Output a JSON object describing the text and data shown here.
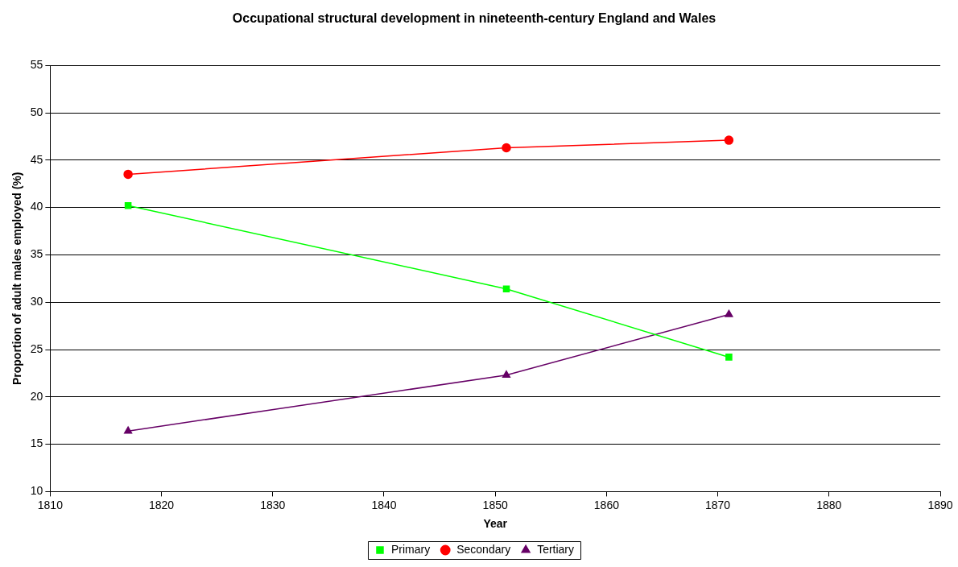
{
  "chart_data": {
    "type": "line",
    "title": "Occupational structural development in nineteenth-century England and Wales",
    "xlabel": "Year",
    "ylabel": "Proportion of adult males employed (%)",
    "x": [
      1817,
      1851,
      1871
    ],
    "series": [
      {
        "name": "Primary",
        "color": "#00ff00",
        "marker": "square",
        "values": [
          40.2,
          31.4,
          24.2
        ]
      },
      {
        "name": "Secondary",
        "color": "#ff0000",
        "marker": "circle",
        "values": [
          43.5,
          46.3,
          47.1
        ]
      },
      {
        "name": "Tertiary",
        "color": "#660066",
        "marker": "triangle",
        "values": [
          16.4,
          22.3,
          28.7
        ]
      }
    ],
    "xlim": [
      1810,
      1890
    ],
    "xticks": [
      1810,
      1820,
      1830,
      1840,
      1850,
      1860,
      1870,
      1880,
      1890
    ],
    "ylim": [
      10,
      55
    ],
    "yticks": [
      10,
      15,
      20,
      25,
      30,
      35,
      40,
      45,
      50,
      55
    ],
    "grid": "y",
    "legend": "bottom",
    "line_style": "solid"
  }
}
